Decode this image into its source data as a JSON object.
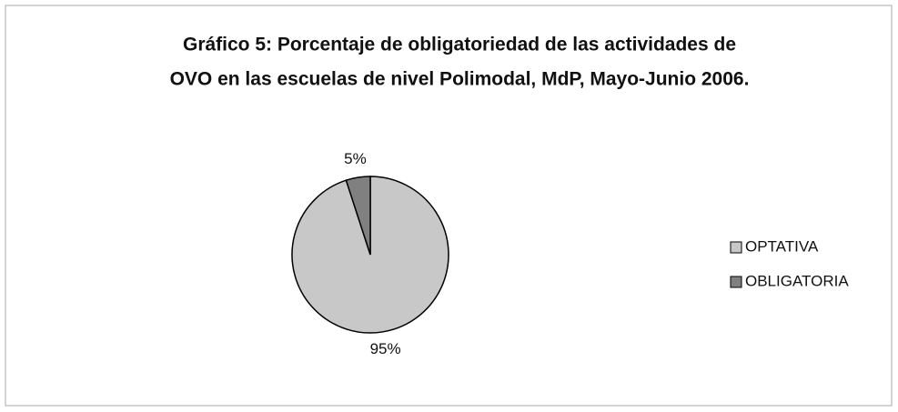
{
  "chart_data": {
    "type": "pie",
    "title": [
      "Gráfico 5: Porcentaje de obligatoriedad de las actividades de",
      "OVO en las escuelas de nivel Polimodal, MdP, Mayo-Junio 2006."
    ],
    "categories": [
      "OPTATIVA",
      "OBLIGATORIA"
    ],
    "values": [
      95,
      5
    ],
    "value_labels": [
      "95%",
      "5%"
    ],
    "colors": [
      "#c8c8c8",
      "#808080"
    ],
    "legend": "right"
  }
}
